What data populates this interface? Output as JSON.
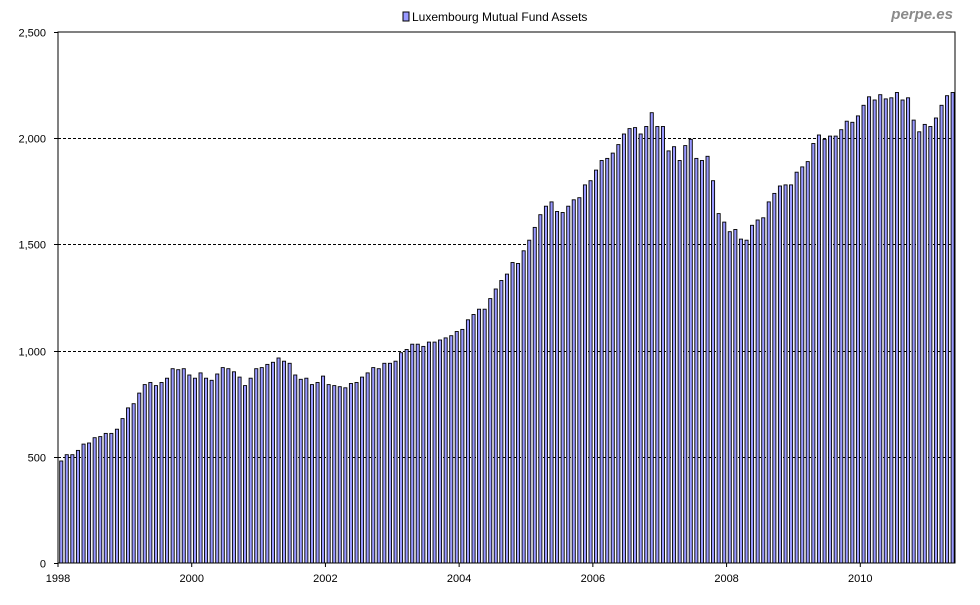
{
  "chart_data": {
    "type": "bar",
    "title": "Luxembourg Mutual Fund Assets",
    "legend": {
      "entries": [
        "Luxembourg Mutual Fund Assets"
      ],
      "placement": "top-center"
    },
    "watermark": "perpe.es",
    "xlabel": "",
    "ylabel": "",
    "ylim": [
      0,
      2500
    ],
    "y_ticks": [
      0,
      500,
      1000,
      1500,
      2000,
      2500
    ],
    "y_tick_labels": [
      "0",
      "500",
      "1,000",
      "1,500",
      "2,000",
      "2,500"
    ],
    "x_tick_labels": [
      "1998",
      "2000",
      "2002",
      "2004",
      "2006",
      "2008",
      "2010"
    ],
    "start": "1998-01",
    "frequency": "monthly",
    "grid": true,
    "bar_color": "#9999ff",
    "series": [
      {
        "name": "Luxembourg Mutual Fund Assets",
        "values": [
          480,
          510,
          510,
          530,
          560,
          565,
          590,
          595,
          610,
          610,
          630,
          680,
          730,
          750,
          800,
          840,
          850,
          835,
          850,
          870,
          915,
          910,
          915,
          885,
          870,
          895,
          870,
          860,
          890,
          920,
          915,
          900,
          875,
          835,
          870,
          915,
          920,
          935,
          945,
          965,
          950,
          940,
          885,
          865,
          870,
          840,
          850,
          880,
          840,
          835,
          830,
          825,
          845,
          850,
          875,
          895,
          920,
          915,
          940,
          940,
          950,
          990,
          1005,
          1030,
          1030,
          1020,
          1040,
          1040,
          1050,
          1060,
          1070,
          1090,
          1100,
          1145,
          1170,
          1195,
          1195,
          1245,
          1290,
          1330,
          1360,
          1415,
          1410,
          1470,
          1520,
          1580,
          1640,
          1680,
          1700,
          1655,
          1650,
          1680,
          1710,
          1720,
          1780,
          1800,
          1850,
          1895,
          1905,
          1930,
          1970,
          2020,
          2045,
          2050,
          2020,
          2055,
          2120,
          2055,
          2055,
          1940,
          1960,
          1895,
          1965,
          1995,
          1905,
          1895,
          1915,
          1800,
          1645,
          1605,
          1560,
          1570,
          1525,
          1520,
          1590,
          1615,
          1625,
          1700,
          1740,
          1775,
          1780,
          1780,
          1840,
          1865,
          1890,
          1975,
          2015,
          1995,
          2010,
          2010,
          2040,
          2080,
          2075,
          2105,
          2155,
          2195,
          2180,
          2205,
          2185,
          2190,
          2215,
          2180,
          2190,
          2085,
          2030,
          2065,
          2055,
          2095,
          2155,
          2200,
          2215
        ]
      }
    ]
  }
}
